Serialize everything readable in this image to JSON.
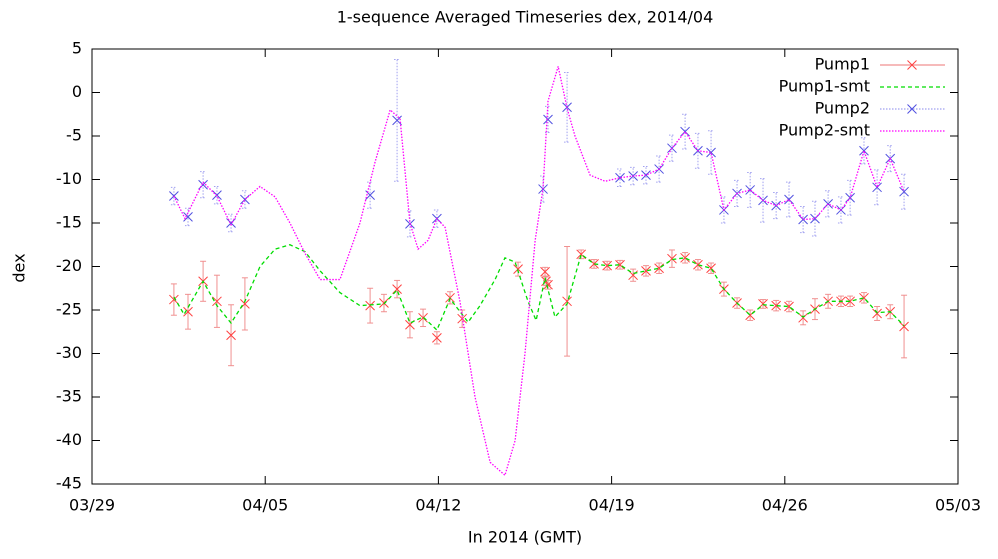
{
  "chart_data": {
    "type": "line",
    "title": "1-sequence Averaged Timeseries dex, 2014/04",
    "x_label": "In 2014 (GMT)",
    "y_label": "dex",
    "xlim": [
      0,
      35
    ],
    "xticks": [
      {
        "value": 0,
        "label": "03/29"
      },
      {
        "value": 7,
        "label": "04/05"
      },
      {
        "value": 14,
        "label": "04/12"
      },
      {
        "value": 21,
        "label": "04/19"
      },
      {
        "value": 28,
        "label": "04/26"
      },
      {
        "value": 35,
        "label": "05/03"
      }
    ],
    "ylim": [
      -45,
      5
    ],
    "yticks": [
      -45,
      -40,
      -35,
      -30,
      -25,
      -20,
      -15,
      -10,
      -5,
      0,
      5
    ],
    "legend": "top-right",
    "series": [
      {
        "name": "Pump1",
        "color": "#ff4040",
        "errorbar_color": "#f09090",
        "style": "points",
        "x": [
          3.31,
          3.88,
          4.49,
          5.05,
          5.62,
          6.18,
          11.24,
          11.8,
          12.33,
          12.85,
          13.38,
          13.94,
          14.47,
          14.96,
          17.22,
          18.31,
          18.35,
          18.43,
          19.2,
          19.77,
          20.29,
          20.82,
          21.34,
          21.87,
          22.39,
          22.92,
          23.44,
          23.97,
          24.49,
          25.02,
          25.54,
          26.07,
          26.6,
          27.12,
          27.65,
          28.17,
          28.74,
          29.22,
          29.75,
          30.27,
          30.64,
          31.2,
          31.73,
          32.26,
          32.82
        ],
        "values": [
          -23.8,
          -25.2,
          -21.7,
          -24,
          -27.9,
          -24.3,
          -24.5,
          -24.2,
          -22.6,
          -26.7,
          -25.9,
          -28.2,
          -23.6,
          -26,
          -20.3,
          -20.6,
          -21.7,
          -22.1,
          -24,
          -18.6,
          -19.7,
          -19.9,
          -19.8,
          -21,
          -20.5,
          -20.2,
          -19.1,
          -19,
          -19.8,
          -20.2,
          -22.6,
          -24.2,
          -25.6,
          -24.3,
          -24.5,
          -24.6,
          -25.9,
          -24.9,
          -24,
          -24,
          -24,
          -23.6,
          -25.4,
          -25.2,
          -26.9
        ],
        "errors": [
          1.8,
          2,
          2.3,
          3,
          3.5,
          3,
          2,
          1,
          1,
          1.5,
          1,
          0.7,
          0.7,
          1,
          0.8,
          0.5,
          0.5,
          0.5,
          6.3,
          0.5,
          0.5,
          0.5,
          0.5,
          0.7,
          0.6,
          0.6,
          1,
          0.6,
          0.6,
          0.6,
          0.8,
          0.6,
          0.6,
          0.5,
          0.6,
          0.6,
          0.8,
          1.2,
          0.8,
          0.6,
          0.6,
          0.6,
          0.8,
          0.8,
          3.6
        ]
      },
      {
        "name": "Pump1-smt",
        "color": "#00dd00",
        "style": "dashed",
        "x": [
          3.31,
          3.72,
          4.49,
          5.05,
          5.62,
          6.18,
          6.79,
          7.4,
          8.0,
          8.61,
          9.22,
          10.02,
          10.83,
          11.8,
          12.33,
          12.85,
          13.38,
          13.94,
          14.47,
          15.2,
          15.68,
          16.29,
          16.69,
          17.1,
          17.62,
          17.95,
          18.31,
          18.71,
          19.2,
          19.77,
          20.29,
          20.82,
          21.34,
          21.87,
          22.39,
          22.92,
          23.44,
          23.97,
          24.49,
          25.02,
          25.54,
          26.07,
          26.6,
          27.12,
          27.65,
          28.17,
          28.74,
          29.22,
          29.75,
          30.27,
          30.64,
          31.2,
          31.73,
          32.26,
          32.82
        ],
        "values": [
          -23.5,
          -25.5,
          -21.7,
          -24.5,
          -26.5,
          -24,
          -20,
          -18,
          -17.5,
          -18.3,
          -20.5,
          -23,
          -24.5,
          -24.3,
          -22.7,
          -26.5,
          -25.8,
          -27.3,
          -23.7,
          -26.4,
          -24.5,
          -21.5,
          -19,
          -19.5,
          -24,
          -26.2,
          -21.3,
          -25.8,
          -24.3,
          -18.6,
          -19.7,
          -19.9,
          -19.8,
          -20.8,
          -20.5,
          -20.2,
          -19.2,
          -19,
          -19.8,
          -20.2,
          -22.6,
          -24.2,
          -25.6,
          -24.4,
          -24.5,
          -24.6,
          -25.8,
          -24.9,
          -24,
          -24,
          -24,
          -23.6,
          -25.3,
          -25.2,
          -26.8
        ]
      },
      {
        "name": "Pump2",
        "color": "#5050e0",
        "errorbar_color": "#a0a0f0",
        "style": "points",
        "x": [
          3.31,
          3.88,
          4.49,
          5.05,
          5.62,
          6.18,
          11.24,
          12.33,
          12.85,
          13.94,
          18.23,
          18.43,
          19.2,
          21.34,
          21.87,
          22.39,
          22.92,
          23.44,
          23.97,
          24.49,
          25.02,
          25.54,
          26.07,
          26.6,
          27.12,
          27.65,
          28.17,
          28.74,
          29.22,
          29.75,
          30.27,
          30.64,
          31.2,
          31.73,
          32.26,
          32.82
        ],
        "values": [
          -11.9,
          -14.3,
          -10.6,
          -11.8,
          -15,
          -12.3,
          -11.8,
          -3.2,
          -15.1,
          -14.5,
          -11.1,
          -3.1,
          -1.7,
          -9.8,
          -9.6,
          -9.5,
          -8.8,
          -6.4,
          -4.5,
          -6.7,
          -6.9,
          -13.5,
          -11.6,
          -11.2,
          -12.4,
          -13,
          -12.3,
          -14.6,
          -14.5,
          -12.8,
          -13.5,
          -12.1,
          -6.7,
          -10.9,
          -7.6,
          -11.4
        ],
        "errors": [
          1,
          1,
          1.5,
          1,
          1,
          1,
          1.5,
          7,
          1.5,
          1,
          1.5,
          1.5,
          4,
          1,
          1,
          1,
          1.5,
          1.5,
          2,
          2,
          2.5,
          1.5,
          1.5,
          2,
          2.5,
          1.5,
          2,
          1.5,
          2,
          1.5,
          1.5,
          2,
          1.5,
          2,
          1.5,
          2
        ]
      },
      {
        "name": "Pump2-smt",
        "color": "#ff00ff",
        "style": "dotted",
        "x": [
          3.31,
          3.76,
          4.49,
          5.05,
          5.62,
          6.18,
          6.79,
          7.4,
          8.0,
          8.61,
          9.22,
          10.02,
          10.83,
          11.44,
          12.05,
          12.45,
          12.85,
          13.18,
          13.58,
          13.94,
          14.27,
          14.87,
          15.48,
          16.09,
          16.69,
          17.1,
          17.5,
          17.91,
          18.23,
          18.43,
          18.84,
          19.2,
          19.52,
          20.13,
          20.74,
          21.34,
          21.87,
          22.39,
          22.92,
          23.44,
          23.97,
          24.49,
          25.02,
          25.54,
          26.07,
          26.6,
          27.12,
          27.65,
          28.17,
          28.74,
          29.22,
          29.75,
          30.27,
          30.64,
          31.2,
          31.73,
          32.26,
          32.82
        ],
        "values": [
          -11.9,
          -14.5,
          -10.3,
          -11.9,
          -15.2,
          -12.3,
          -10.8,
          -12,
          -15,
          -18.5,
          -21.5,
          -21.5,
          -15,
          -8,
          -2,
          -3,
          -15,
          -18,
          -17,
          -14.5,
          -15.5,
          -24,
          -35,
          -42.5,
          -44,
          -40,
          -30,
          -17,
          -11,
          -1,
          3,
          -1.8,
          -5,
          -9.5,
          -10.2,
          -9.8,
          -9.6,
          -9.5,
          -8.8,
          -6.4,
          -4.5,
          -6.7,
          -6.9,
          -13.5,
          -11.6,
          -11.2,
          -12.4,
          -13,
          -12.3,
          -14.6,
          -14.5,
          -12.8,
          -13.5,
          -12.1,
          -6.7,
          -10.9,
          -7.6,
          -11.4
        ]
      }
    ]
  }
}
